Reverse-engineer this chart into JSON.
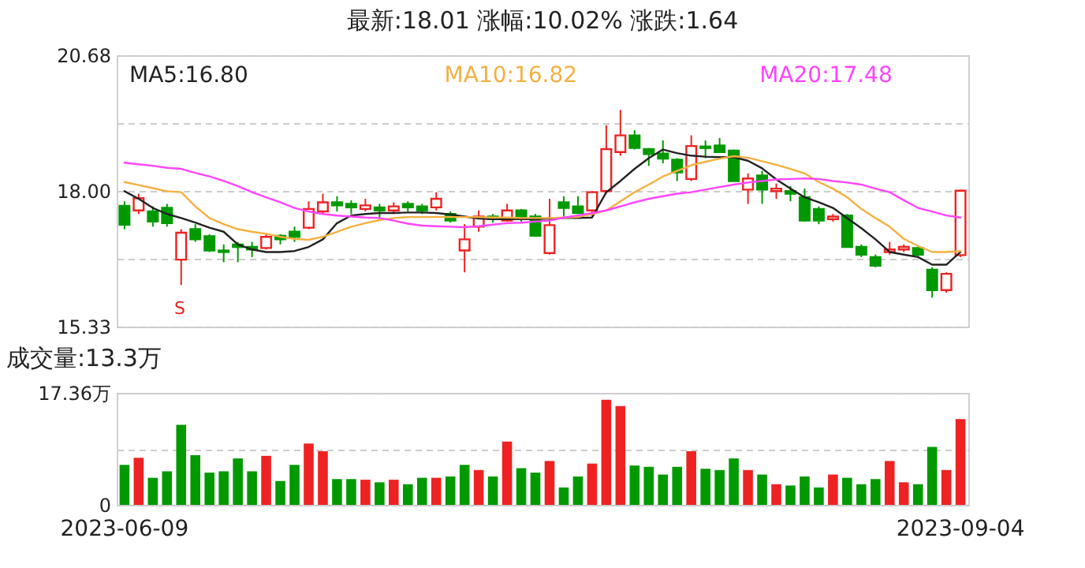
{
  "chart_data": [
    {
      "type": "candlestick",
      "title": "最新:18.01  涨幅:10.02%  涨跌:1.64",
      "categories": [
        "2023-06-09",
        null,
        null,
        null,
        null,
        null,
        null,
        null,
        null,
        null,
        null,
        null,
        null,
        null,
        null,
        null,
        null,
        null,
        null,
        null,
        null,
        null,
        null,
        null,
        null,
        null,
        null,
        null,
        null,
        null,
        null,
        null,
        null,
        null,
        null,
        null,
        null,
        null,
        null,
        null,
        null,
        null,
        null,
        null,
        null,
        null,
        null,
        null,
        null,
        null,
        null,
        null,
        null,
        null,
        null,
        null,
        null,
        null,
        null,
        "2023-09-04"
      ],
      "ohlc": [
        [
          17.71,
          17.8,
          17.25,
          17.34
        ],
        [
          17.62,
          17.95,
          17.55,
          17.86
        ],
        [
          17.6,
          17.7,
          17.3,
          17.4
        ],
        [
          17.67,
          17.75,
          17.3,
          17.37
        ],
        [
          16.65,
          17.25,
          16.15,
          17.18
        ],
        [
          17.25,
          17.35,
          17.0,
          17.05
        ],
        [
          17.11,
          17.15,
          16.8,
          16.83
        ],
        [
          16.83,
          16.95,
          16.6,
          16.8
        ],
        [
          16.95,
          17.0,
          16.6,
          16.9
        ],
        [
          16.9,
          17.0,
          16.7,
          16.85
        ],
        [
          16.88,
          17.15,
          16.85,
          17.1
        ],
        [
          17.12,
          17.15,
          16.95,
          17.05
        ],
        [
          17.2,
          17.3,
          17.0,
          17.1
        ],
        [
          17.28,
          17.8,
          17.25,
          17.65
        ],
        [
          17.6,
          17.95,
          17.55,
          17.78
        ],
        [
          17.78,
          17.9,
          17.6,
          17.72
        ],
        [
          17.75,
          17.82,
          17.55,
          17.68
        ],
        [
          17.65,
          17.85,
          17.6,
          17.72
        ],
        [
          17.68,
          17.75,
          17.45,
          17.62
        ],
        [
          17.62,
          17.78,
          17.55,
          17.7
        ],
        [
          17.75,
          17.8,
          17.6,
          17.68
        ],
        [
          17.7,
          17.75,
          17.55,
          17.62
        ],
        [
          17.68,
          17.98,
          17.62,
          17.85
        ],
        [
          17.55,
          17.6,
          17.38,
          17.42
        ],
        [
          16.83,
          17.35,
          16.4,
          17.05
        ],
        [
          17.3,
          17.62,
          17.2,
          17.5
        ],
        [
          17.5,
          17.55,
          17.38,
          17.45
        ],
        [
          17.42,
          17.75,
          17.4,
          17.62
        ],
        [
          17.62,
          17.65,
          17.4,
          17.47
        ],
        [
          17.5,
          17.55,
          17.1,
          17.12
        ],
        [
          16.78,
          17.85,
          16.75,
          17.33
        ],
        [
          17.78,
          17.9,
          17.5,
          17.67
        ],
        [
          17.7,
          17.9,
          17.55,
          17.57
        ],
        [
          17.62,
          18.0,
          17.5,
          17.98
        ],
        [
          18.0,
          19.3,
          17.95,
          18.83
        ],
        [
          18.77,
          19.6,
          18.7,
          19.1
        ],
        [
          19.1,
          19.2,
          18.82,
          18.85
        ],
        [
          18.83,
          18.85,
          18.5,
          18.73
        ],
        [
          18.74,
          19.0,
          18.55,
          18.64
        ],
        [
          18.62,
          18.65,
          18.2,
          18.37
        ],
        [
          18.24,
          19.1,
          18.2,
          18.89
        ],
        [
          18.88,
          19.0,
          18.65,
          18.85
        ],
        [
          18.9,
          19.05,
          18.75,
          18.77
        ],
        [
          18.8,
          18.82,
          18.2,
          18.2
        ],
        [
          18.03,
          18.35,
          17.75,
          18.25
        ],
        [
          18.31,
          18.4,
          17.75,
          18.03
        ],
        [
          18.0,
          18.15,
          17.85,
          18.05
        ],
        [
          18.0,
          18.1,
          17.8,
          17.95
        ],
        [
          17.88,
          18.05,
          17.4,
          17.42
        ],
        [
          17.65,
          17.7,
          17.35,
          17.42
        ],
        [
          17.45,
          17.55,
          17.4,
          17.5
        ],
        [
          17.52,
          17.55,
          16.9,
          16.9
        ],
        [
          16.9,
          16.95,
          16.7,
          16.75
        ],
        [
          16.7,
          16.75,
          16.5,
          16.53
        ],
        [
          16.8,
          17.0,
          16.75,
          16.85
        ],
        [
          16.85,
          16.95,
          16.8,
          16.9
        ],
        [
          16.88,
          16.9,
          16.7,
          16.75
        ],
        [
          16.45,
          16.5,
          15.9,
          16.05
        ],
        [
          16.05,
          16.4,
          16.0,
          16.37
        ],
        [
          16.74,
          18.03,
          16.7,
          18.01
        ]
      ],
      "colors": [
        "#009900",
        "#ee2222",
        "#009900",
        "#009900",
        "#ee2222",
        "#009900",
        "#009900",
        "#009900",
        "#009900",
        "#009900",
        "#ee2222",
        "#009900",
        "#009900",
        "#ee2222",
        "#ee2222",
        "#009900",
        "#009900",
        "#ee2222",
        "#009900",
        "#ee2222",
        "#009900",
        "#009900",
        "#ee2222",
        "#009900",
        "#ee2222",
        "#ee2222",
        "#009900",
        "#ee2222",
        "#009900",
        "#009900",
        "#ee2222",
        "#009900",
        "#009900",
        "#ee2222",
        "#ee2222",
        "#ee2222",
        "#009900",
        "#009900",
        "#009900",
        "#009900",
        "#ee2222",
        "#009900",
        "#009900",
        "#009900",
        "#ee2222",
        "#009900",
        "#ee2222",
        "#009900",
        "#009900",
        "#009900",
        "#ee2222",
        "#009900",
        "#009900",
        "#009900",
        "#ee2222",
        "#ee2222",
        "#009900",
        "#009900",
        "#ee2222",
        "#ee2222"
      ],
      "series": [
        {
          "name": "MA5:16.80",
          "type": "line",
          "color": "#222222",
          "values": [
            18.0,
            17.85,
            17.67,
            17.55,
            17.47,
            17.38,
            17.28,
            17.2,
            16.95,
            16.85,
            16.8,
            16.8,
            16.82,
            16.9,
            17.05,
            17.37,
            17.52,
            17.55,
            17.57,
            17.57,
            17.58,
            17.58,
            17.57,
            17.54,
            17.5,
            17.46,
            17.45,
            17.45,
            17.45,
            17.45,
            17.46,
            17.47,
            17.47,
            17.48,
            17.98,
            18.2,
            18.44,
            18.65,
            18.82,
            18.75,
            18.7,
            18.68,
            18.67,
            18.67,
            18.6,
            18.45,
            18.23,
            18.05,
            17.88,
            17.78,
            17.67,
            17.47,
            17.27,
            17.05,
            16.8,
            16.75,
            16.7,
            16.55,
            16.55,
            16.8
          ]
        },
        {
          "name": "MA10:16.82",
          "type": "line",
          "color": "#f5b041",
          "values": [
            18.18,
            18.12,
            18.06,
            18.0,
            17.98,
            17.7,
            17.47,
            17.35,
            17.25,
            17.2,
            17.16,
            17.1,
            17.06,
            17.04,
            17.1,
            17.2,
            17.3,
            17.37,
            17.43,
            17.47,
            17.49,
            17.49,
            17.49,
            17.49,
            17.49,
            17.49,
            17.48,
            17.48,
            17.47,
            17.47,
            17.47,
            17.48,
            17.49,
            17.55,
            17.62,
            17.8,
            17.98,
            18.13,
            18.29,
            18.4,
            18.51,
            18.58,
            18.64,
            18.69,
            18.66,
            18.59,
            18.52,
            18.44,
            18.35,
            18.18,
            18.05,
            17.88,
            17.65,
            17.47,
            17.3,
            17.06,
            16.92,
            16.8,
            16.8,
            16.82
          ]
        },
        {
          "name": "MA20:17.48",
          "type": "line",
          "color": "#ff44ff",
          "values": [
            18.56,
            18.53,
            18.5,
            18.46,
            18.44,
            18.36,
            18.29,
            18.2,
            18.1,
            17.98,
            17.88,
            17.78,
            17.67,
            17.6,
            17.55,
            17.52,
            17.5,
            17.48,
            17.47,
            17.42,
            17.36,
            17.32,
            17.31,
            17.3,
            17.29,
            17.31,
            17.34,
            17.37,
            17.38,
            17.4,
            17.42,
            17.48,
            17.52,
            17.57,
            17.62,
            17.7,
            17.78,
            17.85,
            17.9,
            17.95,
            17.98,
            18.03,
            18.08,
            18.13,
            18.17,
            18.2,
            18.23,
            18.24,
            18.25,
            18.24,
            18.2,
            18.17,
            18.13,
            18.05,
            17.98,
            17.82,
            17.67,
            17.6,
            17.52,
            17.48
          ]
        }
      ],
      "ylim": [
        15.33,
        20.68
      ],
      "yticks": [
        15.33,
        {
          "value": 16.665,
          "label": null
        },
        {
          "value": 18,
          "label": "18.00"
        },
        {
          "value": 19.34,
          "label": null
        },
        20.68
      ],
      "grid": "y",
      "legend": "top left",
      "tick_labels": "y",
      "annotations": [
        "S"
      ]
    },
    {
      "type": "bar",
      "title": "成交量:13.3万",
      "categories": [
        "2023-06-09",
        null,
        null,
        null,
        null,
        null,
        null,
        null,
        null,
        null,
        null,
        null,
        null,
        null,
        null,
        null,
        null,
        null,
        null,
        null,
        null,
        null,
        null,
        null,
        null,
        null,
        null,
        null,
        null,
        null,
        null,
        null,
        null,
        null,
        null,
        null,
        null,
        null,
        null,
        null,
        null,
        null,
        null,
        null,
        null,
        null,
        null,
        null,
        null,
        null,
        null,
        null,
        null,
        null,
        null,
        null,
        null,
        null,
        null,
        "2023-09-04"
      ],
      "values": [
        6.2,
        7.3,
        4.2,
        5.2,
        12.4,
        7.7,
        5.0,
        5.2,
        7.2,
        5.2,
        7.6,
        3.7,
        6.2,
        9.5,
        8.3,
        4.0,
        4.0,
        3.9,
        3.5,
        3.9,
        3.2,
        4.2,
        4.2,
        4.4,
        6.2,
        5.4,
        4.4,
        9.8,
        5.7,
        5.0,
        6.8,
        2.7,
        4.4,
        6.4,
        16.3,
        15.3,
        6.1,
        5.9,
        4.7,
        5.9,
        8.3,
        5.6,
        5.4,
        7.2,
        5.4,
        4.7,
        3.2,
        3.0,
        4.4,
        2.7,
        4.7,
        4.2,
        3.2,
        4.0,
        6.8,
        3.5,
        3.2,
        9.0,
        5.4,
        13.3
      ],
      "colors": [
        "#009900",
        "#ee2222",
        "#009900",
        "#009900",
        "#009900",
        "#009900",
        "#009900",
        "#009900",
        "#009900",
        "#009900",
        "#ee2222",
        "#009900",
        "#009900",
        "#ee2222",
        "#ee2222",
        "#009900",
        "#009900",
        "#ee2222",
        "#009900",
        "#ee2222",
        "#009900",
        "#009900",
        "#ee2222",
        "#009900",
        "#009900",
        "#ee2222",
        "#009900",
        "#ee2222",
        "#009900",
        "#009900",
        "#ee2222",
        "#009900",
        "#009900",
        "#ee2222",
        "#ee2222",
        "#ee2222",
        "#009900",
        "#009900",
        "#009900",
        "#009900",
        "#ee2222",
        "#009900",
        "#009900",
        "#009900",
        "#ee2222",
        "#009900",
        "#ee2222",
        "#009900",
        "#009900",
        "#009900",
        "#ee2222",
        "#009900",
        "#009900",
        "#009900",
        "#ee2222",
        "#ee2222",
        "#009900",
        "#009900",
        "#ee2222",
        "#ee2222"
      ],
      "ylim": [
        0,
        17.36
      ],
      "yticks": [
        0,
        {
          "value": 8.68,
          "label": null
        },
        {
          "value": 17.36,
          "label": "17.36万"
        }
      ],
      "grid": "y"
    }
  ]
}
